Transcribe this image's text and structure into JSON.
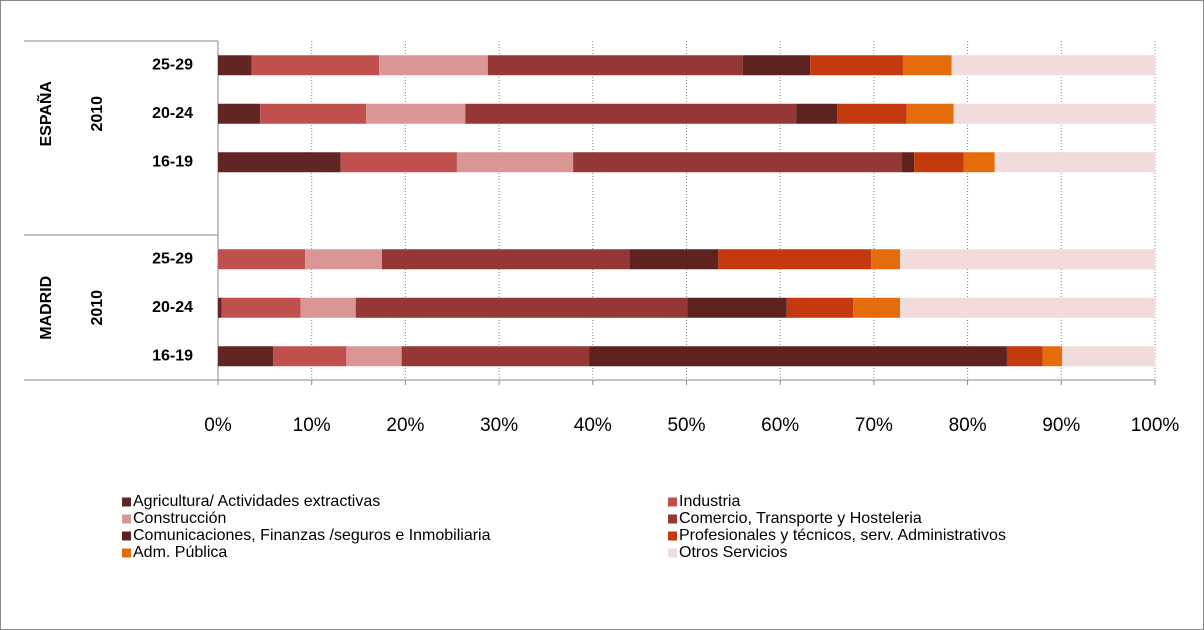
{
  "chart_data": {
    "type": "stacked-bar-horizontal",
    "groups": [
      {
        "label": "ESPAÑA",
        "year": "2010",
        "categories": [
          "25-29",
          "20-24",
          "16-19"
        ]
      },
      {
        "label": "MADRID",
        "year": "2010",
        "categories": [
          "25-29",
          "20-24",
          "16-19"
        ]
      }
    ],
    "series": [
      {
        "name": "Agricultura/ Actividades extractivas",
        "color": "#632523",
        "values": [
          3.6,
          4.5,
          13.1,
          0,
          0.4,
          5.9
        ]
      },
      {
        "name": "Industria",
        "color": "#c0504d",
        "values": [
          13.6,
          11.3,
          12.4,
          9.3,
          8.4,
          7.8
        ]
      },
      {
        "name": "Construcción",
        "color": "#d99694",
        "values": [
          11.6,
          10.6,
          12.4,
          8.2,
          5.9,
          5.9
        ]
      },
      {
        "name": "Comercio, Transporte y Hosteleria",
        "color": "#953735",
        "values": [
          27.2,
          35.3,
          35.1,
          26.4,
          35.4,
          20.0
        ]
      },
      {
        "name": "Comunicaciones, Finanzas /seguros e Inmobiliaria",
        "color": "#5e2220",
        "values": [
          7.2,
          4.4,
          1.3,
          9.5,
          10.6,
          44.6
        ]
      },
      {
        "name": "Profesionales y técnicos, serv. Administrativos",
        "color": "#c4390d",
        "values": [
          9.9,
          7.4,
          5.3,
          16.3,
          7.1,
          3.8
        ]
      },
      {
        "name": "Adm. Pública",
        "color": "#e46c0a",
        "values": [
          5.2,
          5.0,
          3.3,
          3.1,
          5.0,
          2.1
        ]
      },
      {
        "name": "Otros Servicios",
        "color": "#f2dcdb",
        "values": [
          21.7,
          21.5,
          17.1,
          27.2,
          27.2,
          9.9
        ]
      }
    ],
    "xlim": [
      0,
      100
    ],
    "xticks": [
      {
        "value": 0,
        "label": "0%"
      },
      {
        "value": 10,
        "label": "10%"
      },
      {
        "value": 20,
        "label": "20%"
      },
      {
        "value": 30,
        "label": "30%"
      },
      {
        "value": 40,
        "label": "40%"
      },
      {
        "value": 50,
        "label": "50%"
      },
      {
        "value": 60,
        "label": "60%"
      },
      {
        "value": 70,
        "label": "70%"
      },
      {
        "value": 80,
        "label": "80%"
      },
      {
        "value": 90,
        "label": "90%"
      },
      {
        "value": 100,
        "label": "100%"
      }
    ],
    "grid": true
  }
}
